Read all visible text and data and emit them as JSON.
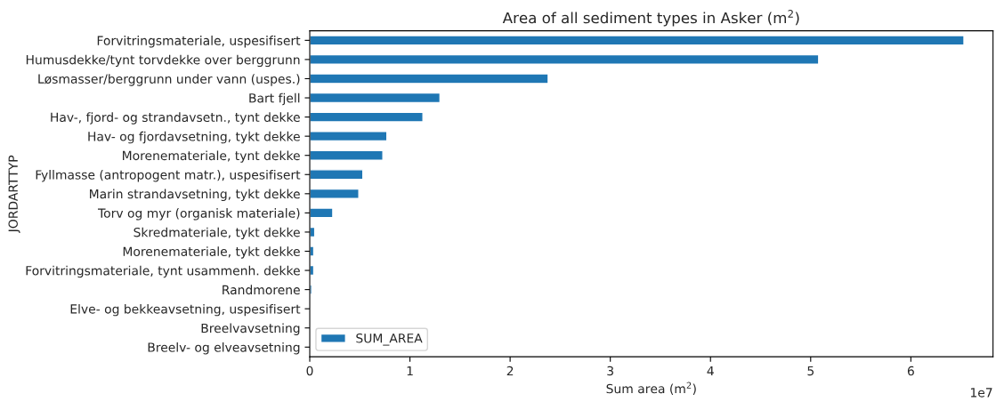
{
  "chart_data": {
    "type": "bar",
    "orientation": "horizontal",
    "title": "Area of all sediment types in Asker (m$^{2}$)",
    "xlabel": "Sum area (m$^{2}$)",
    "ylabel": "JORDARTTYP",
    "categories": [
      "Forvitringsmateriale, uspesifisert",
      "Humusdekke/tynt torvdekke over berggrunn",
      "Løsmasser/berggrunn under vann (uspes.)",
      "Bart fjell",
      "Hav-, fjord- og strandavsetn., tynt dekke",
      "Hav- og fjordavsetning, tykt dekke",
      "Morenemateriale, tynt dekke",
      "Fyllmasse (antropogent matr.), uspesifisert",
      "Marin strandavsetning, tykt dekke",
      "Torv og myr (organisk materiale)",
      "Skredmateriale, tykt dekke",
      "Morenemateriale, tykt dekke",
      "Forvitringsmateriale, tynt usammenh. dekke",
      "Randmorene",
      "Elve- og bekkeavsetning, uspesifisert",
      "Breelvavsetning",
      "Breelv- og elveavsetning"
    ],
    "series": [
      {
        "name": "SUM_AREA",
        "color": "#1f77b4",
        "values": [
          6.53,
          5.08,
          2.38,
          1.3,
          1.13,
          0.77,
          0.73,
          0.53,
          0.49,
          0.23,
          0.05,
          0.04,
          0.04,
          0.02,
          null,
          null,
          null
        ]
      }
    ],
    "xlim": [
      0,
      6.82
    ],
    "xticks": [
      0,
      1,
      2,
      3,
      4,
      5,
      6
    ],
    "legend": "lower left",
    "grid": false,
    "annotations": [
      "1e7"
    ]
  }
}
